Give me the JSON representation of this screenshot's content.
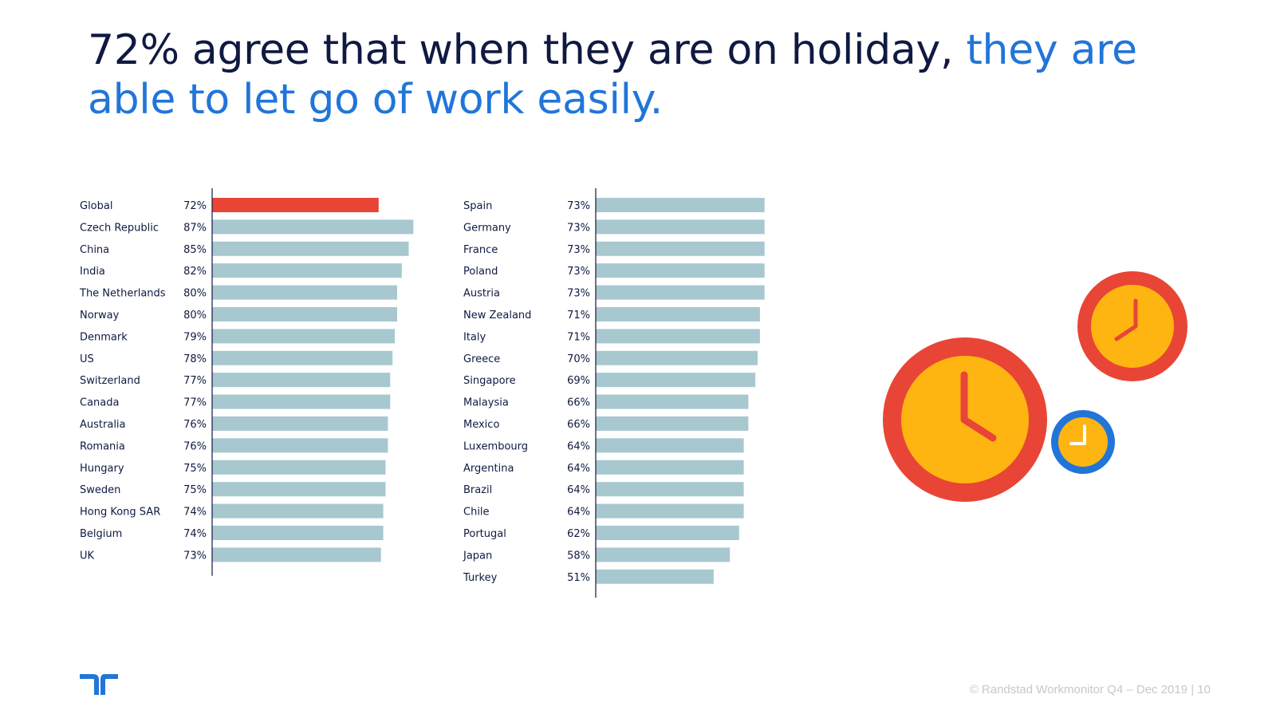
{
  "headline": {
    "lead": "72% agree that when they are on holiday,",
    "accent": "they are able to let go of work easily."
  },
  "colors": {
    "title": "#0f1941",
    "accent": "#2175d9",
    "highlight_bar": "#e84536",
    "bar": "#a8c8d0",
    "clock_red": "#e84536",
    "clock_yellow": "#ffb511",
    "clock_blue": "#2175d9"
  },
  "chart_data": [
    {
      "type": "bar",
      "orientation": "horizontal",
      "xlim": [
        0,
        100
      ],
      "unit": "%",
      "highlight": "Global",
      "categories": [
        "Global",
        "Czech Republic",
        "China",
        "India",
        "The Netherlands",
        "Norway",
        "Denmark",
        "US",
        "Switzerland",
        "Canada",
        "Australia",
        "Romania",
        "Hungary",
        "Sweden",
        "Hong Kong SAR",
        "Belgium",
        "UK"
      ],
      "values": [
        72,
        87,
        85,
        82,
        80,
        80,
        79,
        78,
        77,
        77,
        76,
        76,
        75,
        75,
        74,
        74,
        73
      ],
      "value_labels": [
        "72%",
        "87%",
        "85%",
        "82%",
        "80%",
        "80%",
        "79%",
        "78%",
        "77%",
        "77%",
        "76%",
        "76%",
        "75%",
        "75%",
        "74%",
        "74%",
        "73%"
      ]
    },
    {
      "type": "bar",
      "orientation": "horizontal",
      "xlim": [
        0,
        100
      ],
      "unit": "%",
      "highlight": "",
      "categories": [
        "Spain",
        "Germany",
        "France",
        "Poland",
        "Austria",
        "New Zealand",
        "Italy",
        "Greece",
        "Singapore",
        "Malaysia",
        "Mexico",
        "Luxembourg",
        "Argentina",
        "Brazil",
        "Chile",
        "Portugal",
        "Japan",
        "Turkey"
      ],
      "values": [
        73,
        73,
        73,
        73,
        73,
        71,
        71,
        70,
        69,
        66,
        66,
        64,
        64,
        64,
        64,
        62,
        58,
        51
      ],
      "value_labels": [
        "73%",
        "73%",
        "73%",
        "73%",
        "73%",
        "71%",
        "71%",
        "70%",
        "69%",
        "66%",
        "66%",
        "64%",
        "64%",
        "64%",
        "64%",
        "62%",
        "58%",
        "51%"
      ]
    }
  ],
  "footer": {
    "text": "© Randstad Workmonitor Q4 – Dec 2019  |  10"
  },
  "illustration": {
    "icons": [
      "clock-icon",
      "clock-icon",
      "clock-icon"
    ]
  },
  "logo": {
    "icon": "randstad-logo-icon"
  }
}
